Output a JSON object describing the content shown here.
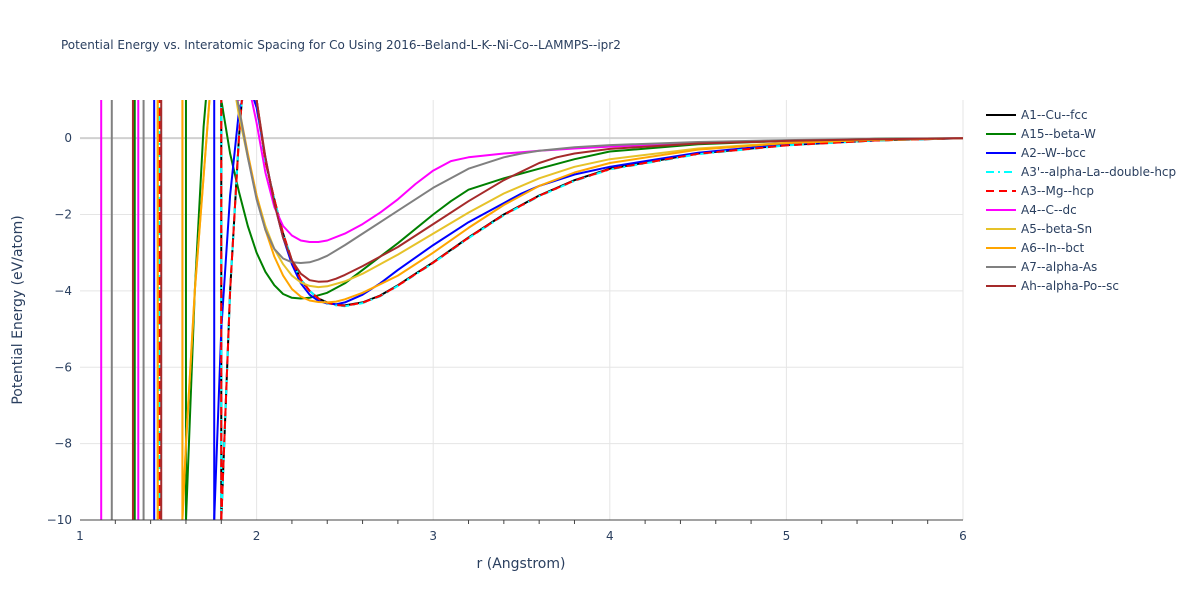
{
  "chart_data": {
    "type": "line",
    "title": "Potential Energy vs. Interatomic Spacing for Co Using 2016--Beland-L-K--Ni-Co--LAMMPS--ipr2",
    "xlabel": "r (Angstrom)",
    "ylabel": "Potential Energy (eV/atom)",
    "xlim": [
      1,
      6
    ],
    "ylim": [
      -10,
      1
    ],
    "xticks": [
      1,
      2,
      3,
      4,
      5,
      6
    ],
    "yticks": [
      0,
      -2,
      -4,
      -6,
      -8,
      -10
    ],
    "ytick_labels": [
      "0",
      "−2",
      "−4",
      "−6",
      "−8",
      "−10"
    ],
    "grid": true,
    "legend_position": "top-right",
    "series": [
      {
        "name": "A1--Cu--fcc",
        "color": "#000000",
        "dash": "solid",
        "rmin": 1.8,
        "e0": -4.38,
        "rpos": 1.3,
        "x": [
          1.8,
          1.85,
          1.9,
          1.95,
          2.0,
          2.05,
          2.1,
          2.15,
          2.2,
          2.25,
          2.3,
          2.35,
          2.4,
          2.45,
          2.5,
          2.6,
          2.7,
          2.8,
          2.9,
          3.0,
          3.2,
          3.4,
          3.6,
          3.8,
          4.0,
          4.5,
          5.0,
          5.5,
          6.0
        ],
        "y": [
          -10,
          -4,
          0,
          3,
          1,
          -0.6,
          -1.6,
          -2.5,
          -3.2,
          -3.7,
          -4.0,
          -4.2,
          -4.3,
          -4.36,
          -4.38,
          -4.3,
          -4.12,
          -3.85,
          -3.55,
          -3.25,
          -2.6,
          -2.0,
          -1.5,
          -1.1,
          -0.8,
          -0.4,
          -0.18,
          -0.06,
          0
        ]
      },
      {
        "name": "A15--beta-W",
        "color": "#008000",
        "dash": "solid",
        "rmin": 1.6,
        "e0": -4.2,
        "rpos": 1.31,
        "x": [
          1.6,
          1.65,
          1.7,
          1.75,
          1.8,
          1.85,
          1.9,
          1.95,
          2.0,
          2.05,
          2.1,
          2.15,
          2.2,
          2.25,
          2.3,
          2.4,
          2.5,
          2.6,
          2.8,
          3.0,
          3.1,
          3.2,
          3.4,
          3.6,
          3.8,
          4.0,
          4.5,
          5.0,
          5.5,
          6.0
        ],
        "y": [
          -10,
          -4,
          0.3,
          3,
          1,
          -0.4,
          -1.4,
          -2.3,
          -3.0,
          -3.5,
          -3.85,
          -4.08,
          -4.18,
          -4.2,
          -4.18,
          -4.05,
          -3.8,
          -3.45,
          -2.75,
          -2.0,
          -1.65,
          -1.35,
          -1.05,
          -0.8,
          -0.55,
          -0.35,
          -0.16,
          -0.07,
          -0.02,
          0
        ]
      },
      {
        "name": "A2--W--bcc",
        "color": "#0000ff",
        "dash": "solid",
        "rmin": 1.76,
        "e0": -4.35,
        "rpos": 1.42,
        "x": [
          1.76,
          1.8,
          1.85,
          1.9,
          1.95,
          2.0,
          2.05,
          2.1,
          2.15,
          2.2,
          2.25,
          2.3,
          2.35,
          2.4,
          2.45,
          2.5,
          2.6,
          2.7,
          2.8,
          3.0,
          3.2,
          3.4,
          3.5,
          3.6,
          3.8,
          4.0,
          4.5,
          5.0,
          5.5,
          6.0
        ],
        "y": [
          -10,
          -5,
          -1.5,
          0.7,
          1.5,
          0.8,
          -0.5,
          -1.7,
          -2.6,
          -3.3,
          -3.8,
          -4.1,
          -4.26,
          -4.33,
          -4.35,
          -4.3,
          -4.1,
          -3.8,
          -3.45,
          -2.8,
          -2.2,
          -1.7,
          -1.45,
          -1.25,
          -0.95,
          -0.75,
          -0.38,
          -0.16,
          -0.05,
          0
        ]
      },
      {
        "name": "A3'--alpha-La--double-hcp",
        "color": "#00ffff",
        "dash": "dashdot",
        "rmin": 1.8,
        "e0": -4.4,
        "rpos": 1.45,
        "x": [
          1.8,
          1.85,
          1.9,
          1.95,
          2.0,
          2.05,
          2.1,
          2.15,
          2.2,
          2.25,
          2.3,
          2.35,
          2.4,
          2.45,
          2.5,
          2.6,
          2.7,
          2.8,
          2.9,
          3.0,
          3.2,
          3.4,
          3.6,
          3.8,
          4.0,
          4.5,
          5.0,
          5.5,
          6.0
        ],
        "y": [
          -10,
          -4,
          0,
          3,
          1,
          -0.6,
          -1.6,
          -2.5,
          -3.2,
          -3.7,
          -4.0,
          -4.2,
          -4.32,
          -4.38,
          -4.4,
          -4.32,
          -4.14,
          -3.87,
          -3.57,
          -3.27,
          -2.62,
          -2.02,
          -1.52,
          -1.12,
          -0.82,
          -0.42,
          -0.19,
          -0.06,
          0
        ]
      },
      {
        "name": "A3--Mg--hcp",
        "color": "#ff0000",
        "dash": "dash",
        "rmin": 1.8,
        "e0": -4.39,
        "rpos": 1.45,
        "x": [
          1.8,
          1.85,
          1.9,
          1.95,
          2.0,
          2.05,
          2.1,
          2.15,
          2.2,
          2.25,
          2.3,
          2.35,
          2.4,
          2.45,
          2.5,
          2.6,
          2.7,
          2.8,
          2.9,
          3.0,
          3.2,
          3.4,
          3.6,
          3.8,
          4.0,
          4.5,
          5.0,
          5.5,
          6.0
        ],
        "y": [
          -10,
          -4,
          0,
          3,
          1,
          -0.6,
          -1.6,
          -2.5,
          -3.2,
          -3.7,
          -4.0,
          -4.2,
          -4.31,
          -4.37,
          -4.39,
          -4.31,
          -4.13,
          -3.86,
          -3.56,
          -3.26,
          -2.61,
          -2.01,
          -1.51,
          -1.11,
          -0.81,
          -0.41,
          -0.19,
          -0.06,
          0
        ]
      },
      {
        "name": "A4--C--dc",
        "color": "#ff00ff",
        "dash": "solid",
        "rmin": 1.12,
        "e0": -2.72,
        "rpos": 1.33,
        "x": [
          1.85,
          1.9,
          1.95,
          2.0,
          2.05,
          2.1,
          2.15,
          2.2,
          2.25,
          2.3,
          2.35,
          2.4,
          2.5,
          2.6,
          2.7,
          2.8,
          2.9,
          3.0,
          3.1,
          3.15,
          3.2,
          3.3,
          3.4,
          3.5,
          3.6,
          3.8,
          4.0,
          4.5,
          5.0,
          5.5,
          6.0
        ],
        "y": [
          3,
          1,
          1.5,
          0.4,
          -0.9,
          -1.8,
          -2.3,
          -2.55,
          -2.68,
          -2.72,
          -2.72,
          -2.68,
          -2.5,
          -2.25,
          -1.95,
          -1.6,
          -1.2,
          -0.85,
          -0.6,
          -0.55,
          -0.5,
          -0.45,
          -0.4,
          -0.37,
          -0.33,
          -0.27,
          -0.22,
          -0.13,
          -0.07,
          -0.03,
          0
        ]
      },
      {
        "name": "A5--beta-Sn",
        "color": "#e6c229",
        "dash": "solid",
        "rmin": 1.58,
        "e0": -3.9,
        "rpos": 1.44,
        "x": [
          1.58,
          1.6,
          1.65,
          1.7,
          1.75,
          1.8,
          1.85,
          1.9,
          1.95,
          2.0,
          2.05,
          2.1,
          2.15,
          2.2,
          2.25,
          2.3,
          2.35,
          2.4,
          2.5,
          2.6,
          2.8,
          3.0,
          3.2,
          3.4,
          3.6,
          3.8,
          4.0,
          4.5,
          5.0,
          5.5,
          6.0
        ],
        "y": [
          -10,
          -8,
          -4,
          -1,
          2,
          3,
          2,
          0.6,
          -0.5,
          -1.5,
          -2.3,
          -2.9,
          -3.3,
          -3.6,
          -3.78,
          -3.87,
          -3.9,
          -3.88,
          -3.75,
          -3.55,
          -3.05,
          -2.5,
          -1.95,
          -1.45,
          -1.05,
          -0.75,
          -0.55,
          -0.27,
          -0.12,
          -0.04,
          0
        ]
      },
      {
        "name": "A6--In--bct",
        "color": "#ffa500",
        "dash": "solid",
        "rmin": 1.58,
        "e0": -4.3,
        "rpos": 1.44,
        "x": [
          1.58,
          1.6,
          1.65,
          1.7,
          1.75,
          1.8,
          1.85,
          1.9,
          1.95,
          2.0,
          2.05,
          2.1,
          2.15,
          2.2,
          2.25,
          2.3,
          2.35,
          2.4,
          2.45,
          2.5,
          2.6,
          2.8,
          3.0,
          3.2,
          3.4,
          3.6,
          3.8,
          4.0,
          4.5,
          5.0,
          5.5,
          6.0
        ],
        "y": [
          -10,
          -8,
          -4,
          -1,
          2,
          3,
          2,
          0.8,
          -0.4,
          -1.5,
          -2.4,
          -3.1,
          -3.6,
          -3.95,
          -4.15,
          -4.25,
          -4.29,
          -4.3,
          -4.28,
          -4.22,
          -4.05,
          -3.6,
          -3.0,
          -2.35,
          -1.75,
          -1.25,
          -0.9,
          -0.65,
          -0.3,
          -0.13,
          -0.04,
          0
        ]
      },
      {
        "name": "A7--alpha-As",
        "color": "#808080",
        "dash": "solid",
        "rmin": 1.18,
        "e0": -3.27,
        "rpos": 1.36,
        "x": [
          1.85,
          1.9,
          1.95,
          2.0,
          2.05,
          2.1,
          2.15,
          2.2,
          2.25,
          2.3,
          2.35,
          2.4,
          2.5,
          2.6,
          2.8,
          3.0,
          3.2,
          3.4,
          3.5,
          3.6,
          3.8,
          4.0,
          4.5,
          5.0,
          5.5,
          6.0
        ],
        "y": [
          2,
          0.8,
          -0.5,
          -1.6,
          -2.4,
          -2.9,
          -3.15,
          -3.25,
          -3.27,
          -3.25,
          -3.18,
          -3.08,
          -2.8,
          -2.5,
          -1.9,
          -1.3,
          -0.8,
          -0.5,
          -0.4,
          -0.33,
          -0.24,
          -0.18,
          -0.1,
          -0.05,
          -0.02,
          0
        ]
      },
      {
        "name": "Ah--alpha-Po--sc",
        "color": "#a52a2a",
        "dash": "solid",
        "rmin": 1.46,
        "e0": -3.75,
        "rpos": 1.3,
        "x": [
          1.95,
          2.0,
          2.05,
          2.1,
          2.15,
          2.2,
          2.25,
          2.3,
          2.35,
          2.4,
          2.45,
          2.5,
          2.6,
          2.8,
          3.0,
          3.2,
          3.4,
          3.6,
          3.7,
          3.8,
          4.0,
          4.5,
          5.0,
          5.5,
          6.0
        ],
        "y": [
          2,
          1,
          -0.5,
          -1.7,
          -2.6,
          -3.2,
          -3.55,
          -3.72,
          -3.76,
          -3.75,
          -3.68,
          -3.58,
          -3.35,
          -2.85,
          -2.25,
          -1.65,
          -1.1,
          -0.65,
          -0.5,
          -0.4,
          -0.28,
          -0.14,
          -0.07,
          -0.03,
          0
        ]
      }
    ]
  }
}
